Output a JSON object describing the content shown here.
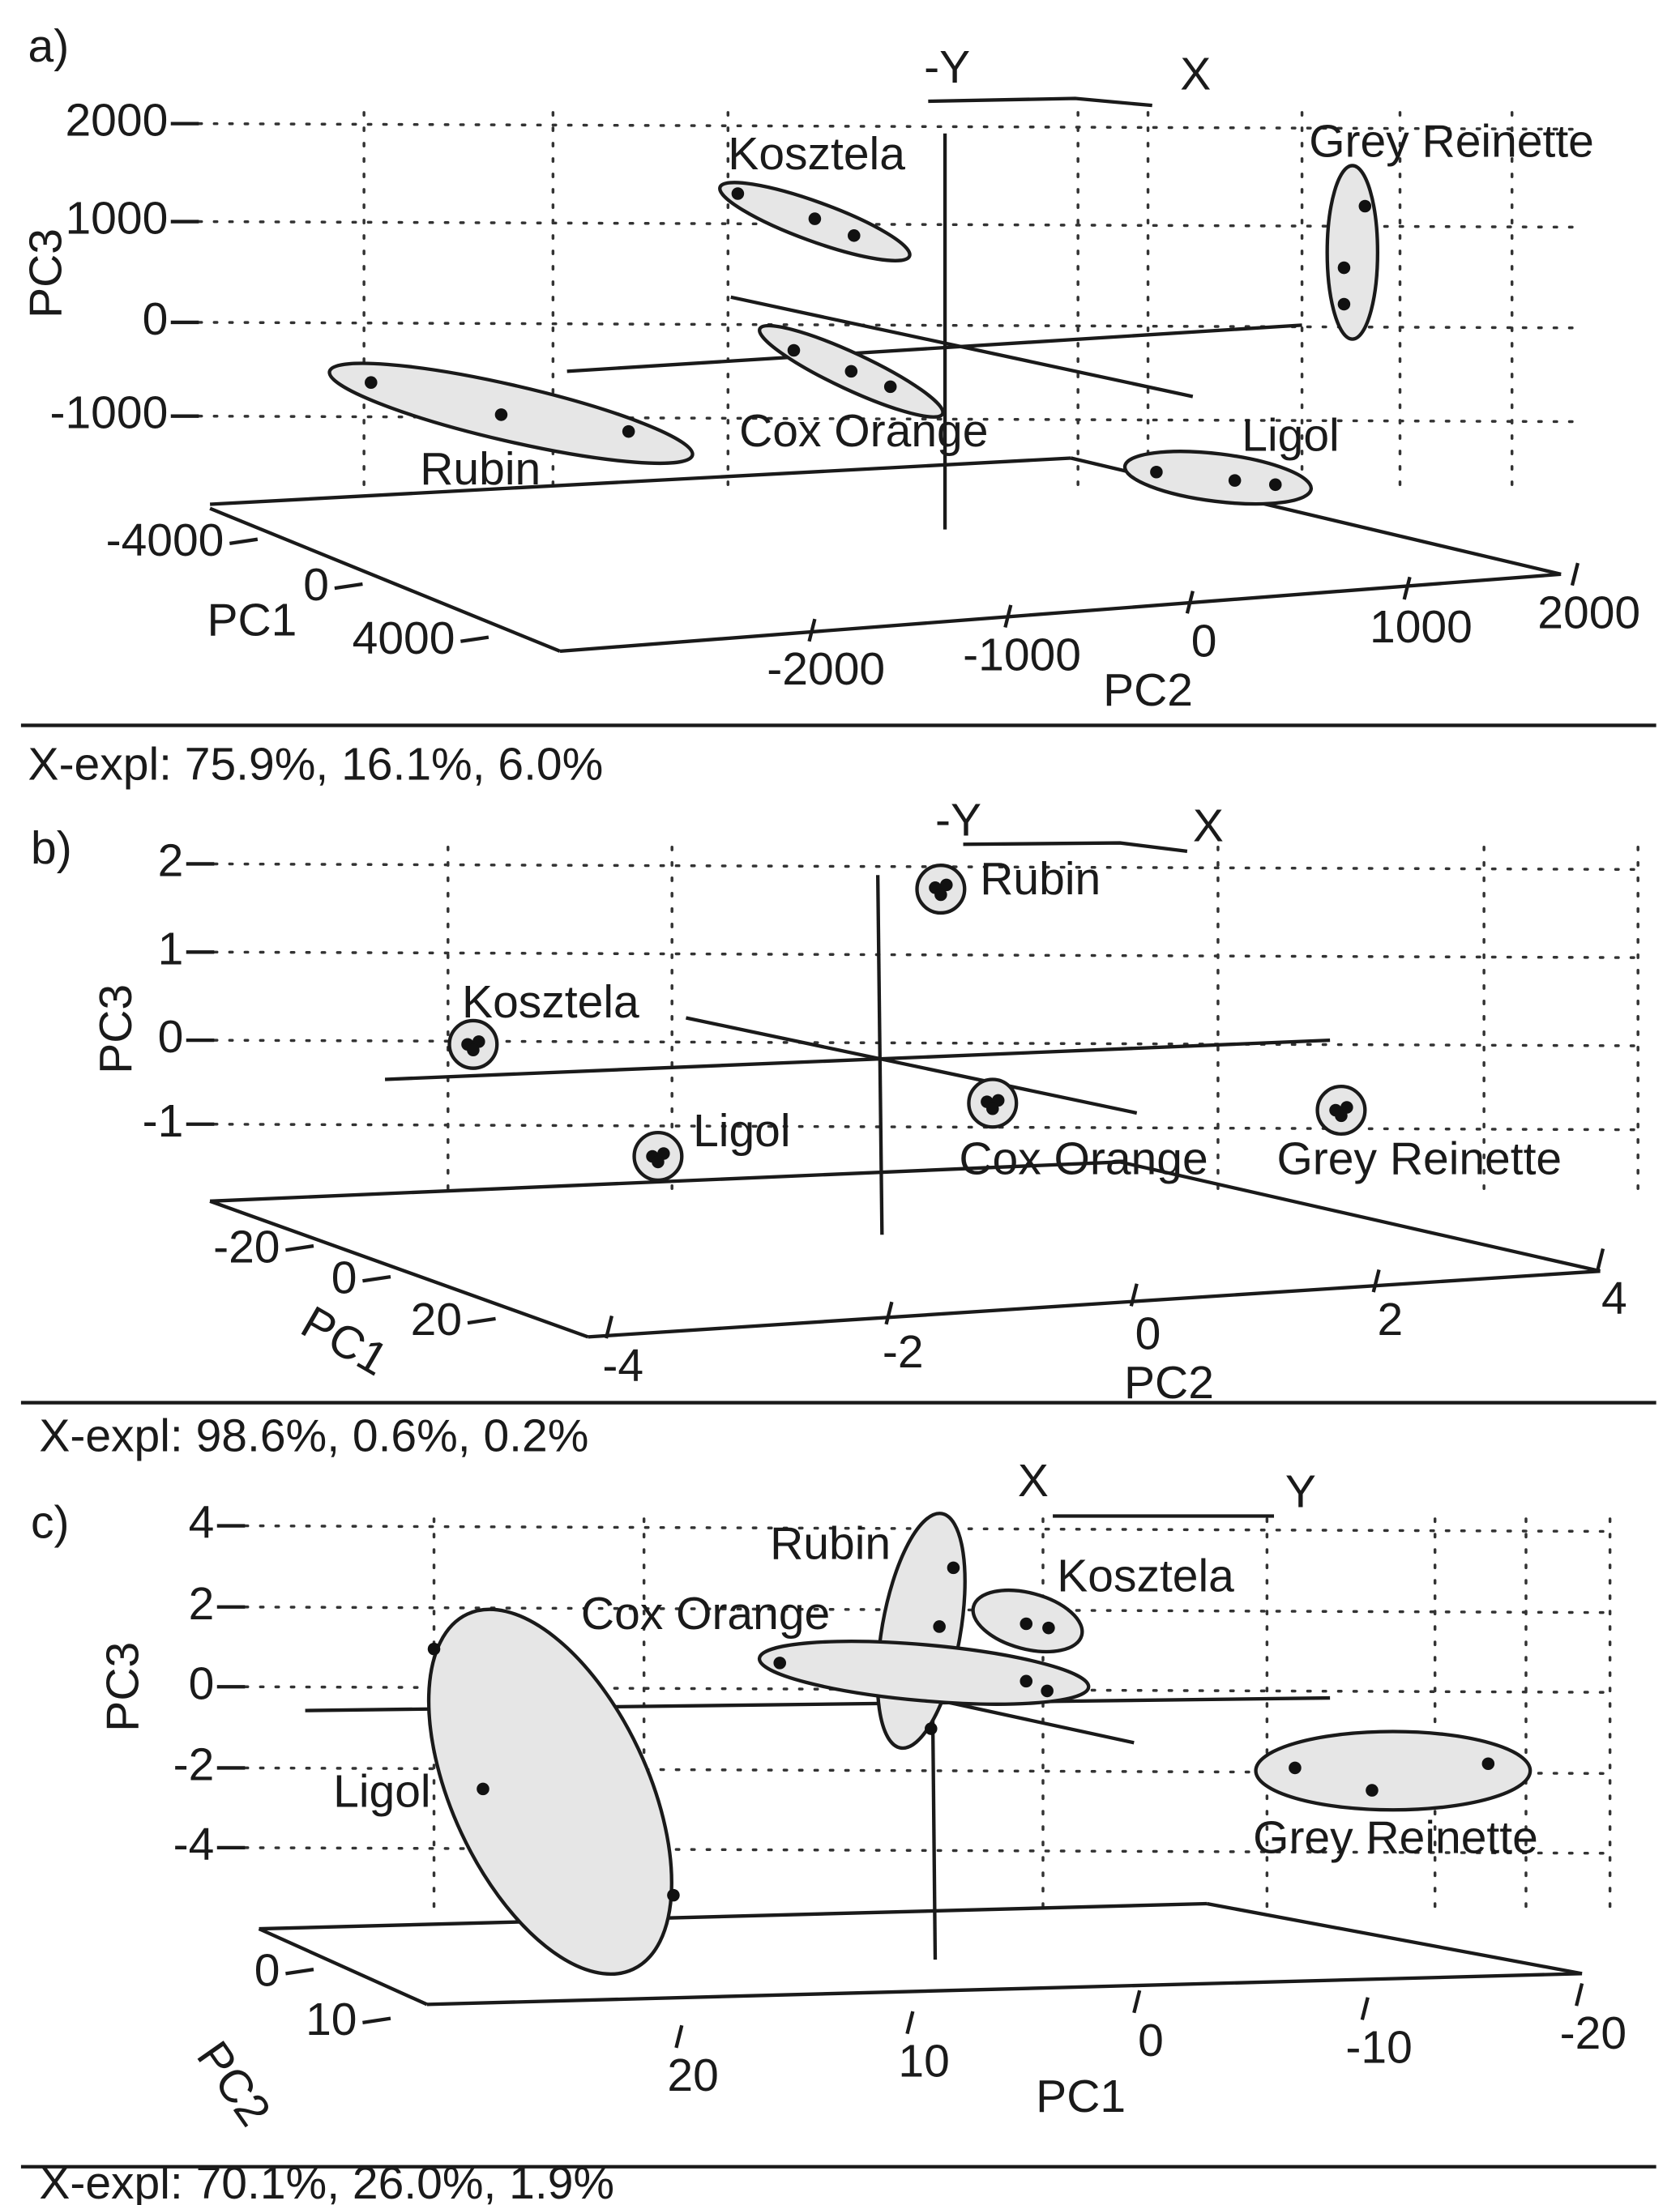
{
  "panels": [
    {
      "label": "a)",
      "axis_letters": [
        "-Y",
        "X"
      ],
      "z_title": "PC3",
      "z_ticks": [
        2000,
        1000,
        0,
        -1000
      ],
      "depth_title": "PC1",
      "depth_ticks": [
        -4000,
        0,
        4000
      ],
      "width_title": "PC2",
      "width_ticks": [
        -2000,
        -1000,
        0,
        1000,
        2000
      ],
      "groups": [
        "Kosztela",
        "Grey Reinette",
        "Rubin",
        "Cox Orange",
        "Ligol"
      ],
      "explained": "X-expl: 75.9%, 16.1%, 6.0%"
    },
    {
      "label": "b)",
      "axis_letters": [
        "-Y",
        "X"
      ],
      "z_title": "PC3",
      "z_ticks": [
        2,
        1,
        0,
        -1
      ],
      "depth_title": "PC1",
      "depth_ticks": [
        -20,
        0,
        20
      ],
      "width_title": "PC2",
      "width_ticks": [
        -4,
        -2,
        0,
        2,
        4
      ],
      "groups": [
        "Rubin",
        "Kosztela",
        "Ligol",
        "Cox Orange",
        "Grey Reinette"
      ],
      "explained": "X-expl: 98.6%, 0.6%, 0.2%"
    },
    {
      "label": "c)",
      "axis_letters": [
        "X",
        "Y"
      ],
      "z_title": "PC3",
      "z_ticks": [
        4,
        2,
        0,
        -2,
        -4
      ],
      "depth_title": "PC2",
      "depth_ticks": [
        0,
        10
      ],
      "width_title": "PC1",
      "width_ticks": [
        20,
        10,
        0,
        -10,
        -20
      ],
      "groups": [
        "Rubin",
        "Kosztela",
        "Cox Orange",
        "Ligol",
        "Grey Reinette"
      ],
      "explained": "X-expl: 70.1%, 26.0%, 1.9%"
    }
  ]
}
